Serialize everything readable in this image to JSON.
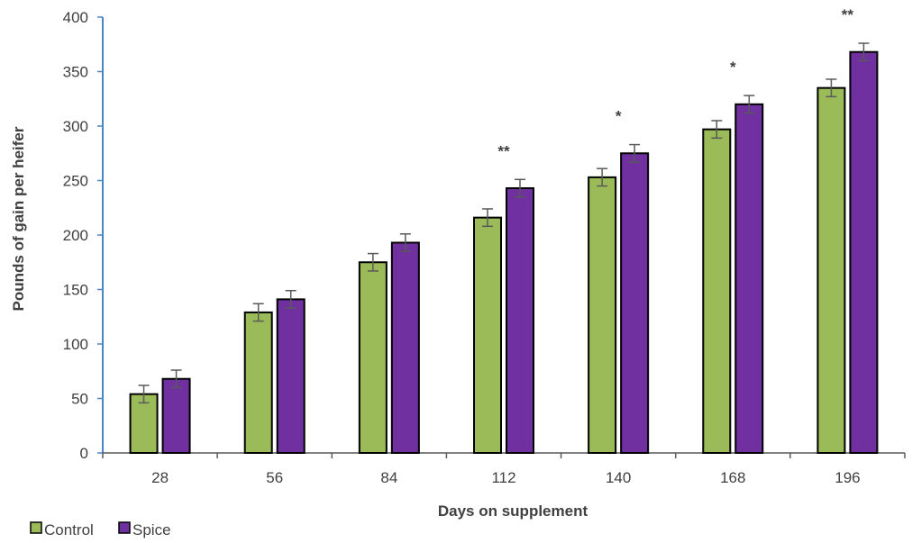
{
  "chart_data": {
    "type": "bar",
    "xlabel": "Days on supplement",
    "ylabel": "Pounds of gain per heifer",
    "ylim": [
      0,
      400
    ],
    "yticks": [
      "0",
      "50",
      "100",
      "150",
      "200",
      "250",
      "300",
      "350",
      "400"
    ],
    "categories": [
      "28",
      "56",
      "84",
      "112",
      "140",
      "168",
      "196"
    ],
    "series": [
      {
        "name": "Control",
        "color": "#9bbb59",
        "values": [
          54,
          129,
          175,
          216,
          253,
          297,
          335
        ],
        "error": [
          8,
          8,
          8,
          8,
          8,
          8,
          8
        ]
      },
      {
        "name": "Spice",
        "color": "#7030a0",
        "values": [
          68,
          141,
          193,
          243,
          275,
          320,
          368
        ],
        "error": [
          8,
          8,
          8,
          8,
          8,
          8,
          8
        ]
      }
    ],
    "annotations": [
      "",
      "",
      "",
      "**",
      "*",
      "*",
      "**"
    ],
    "legend_position": "bottom-left",
    "grid": false
  }
}
